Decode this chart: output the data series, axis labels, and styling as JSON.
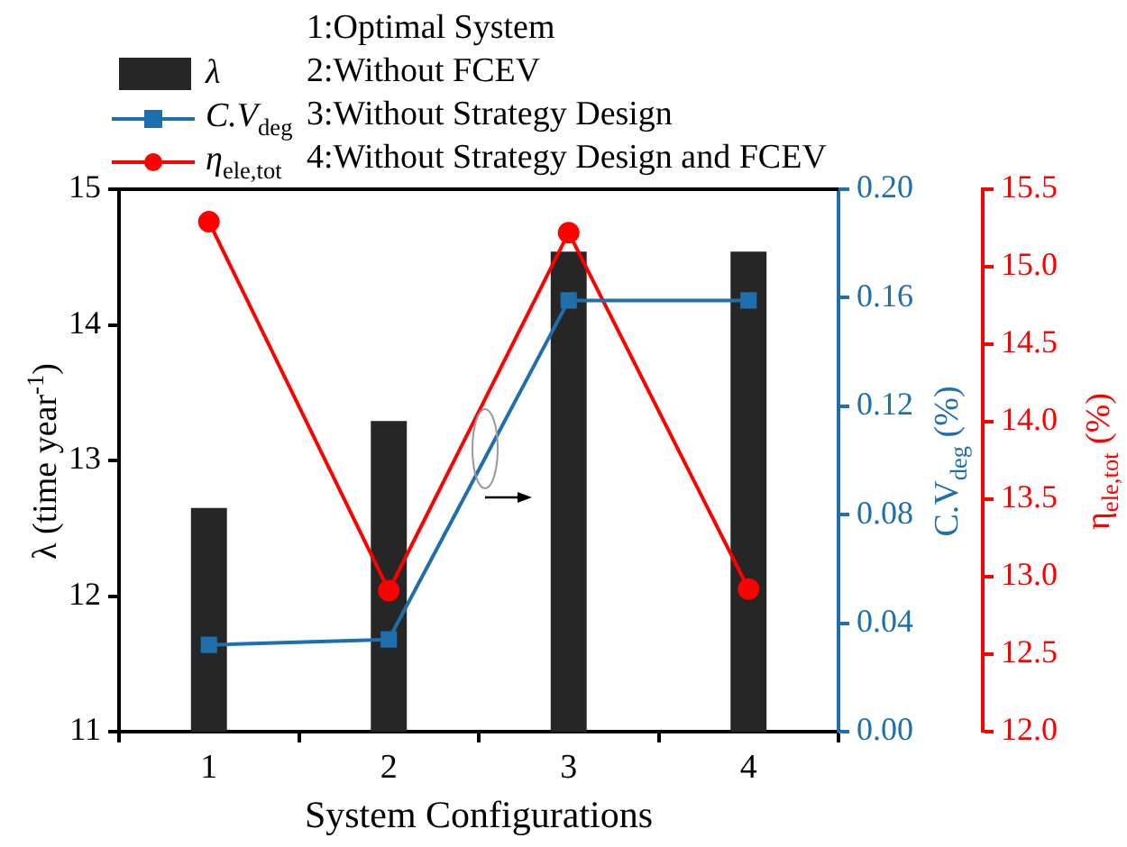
{
  "chart_data": {
    "type": "bar",
    "categories": [
      "1",
      "2",
      "3",
      "4"
    ],
    "xlabel": "System Configurations",
    "ylabel": "λ (time year$^{-1}$)",
    "y2label": "C.V$_{deg}$ (%)",
    "y3label": "η$_{ele,tot}$ (%)",
    "series": [
      {
        "name": "λ",
        "color": "#262626",
        "values": [
          12.65,
          13.29,
          14.54,
          14.54
        ]
      },
      {
        "name": "C.V$_{deg}$",
        "type": "line",
        "color": "#1f6fad",
        "axis": "y2",
        "marker": "square",
        "values": [
          0.032,
          0.034,
          0.159,
          0.159
        ]
      },
      {
        "name": "η$_{ele,tot}$",
        "type": "line",
        "color": "#ff0000",
        "axis": "y3",
        "marker": "circle",
        "values": [
          15.29,
          12.91,
          15.22,
          12.92
        ]
      }
    ],
    "ylim": [
      11,
      15
    ],
    "yticks": [
      11,
      12,
      13,
      14,
      15
    ],
    "y2lim": [
      0,
      0.2
    ],
    "y2ticks": [
      {
        "value": 0,
        "label": "0.00"
      },
      {
        "value": 0.04,
        "label": "0.04"
      },
      {
        "value": 0.08,
        "label": "0.08"
      },
      {
        "value": 0.12,
        "label": "0.12"
      },
      {
        "value": 0.16,
        "label": "0.16"
      },
      {
        "value": 0.2,
        "label": "0.20"
      }
    ],
    "y3lim": [
      12,
      15.5
    ],
    "y3ticks": [
      {
        "value": 12,
        "label": "12.0"
      },
      {
        "value": 12.5,
        "label": "12.5"
      },
      {
        "value": 13,
        "label": "13.0"
      },
      {
        "value": 13.5,
        "label": "13.5"
      },
      {
        "value": 14,
        "label": "14.0"
      },
      {
        "value": 14.5,
        "label": "14.5"
      },
      {
        "value": 15,
        "label": "15.0"
      },
      {
        "value": 15.5,
        "label": "15.5"
      }
    ],
    "legend": "top left",
    "annotations": [
      "1:Optimal System",
      "2:Without FCEV",
      "3:Without Strategy Design",
      "4:Without Strategy Design and FCEV"
    ]
  }
}
